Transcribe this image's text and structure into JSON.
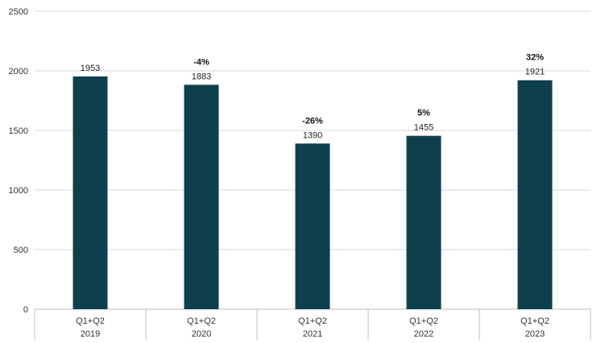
{
  "chart_data": {
    "type": "bar",
    "categories": [
      {
        "period": "Q1+Q2",
        "year": "2019"
      },
      {
        "period": "Q1+Q2",
        "year": "2020"
      },
      {
        "period": "Q1+Q2",
        "year": "2021"
      },
      {
        "period": "Q1+Q2",
        "year": "2022"
      },
      {
        "period": "Q1+Q2",
        "year": "2023"
      }
    ],
    "values": [
      1953,
      1883,
      1390,
      1455,
      1921
    ],
    "value_labels": [
      "1953",
      "1883",
      "1390",
      "1455",
      "1921"
    ],
    "change_labels": [
      "",
      "-4%",
      "-26%",
      "5%",
      "32%"
    ],
    "ylim": [
      0,
      2500
    ],
    "yticks": [
      0,
      500,
      1000,
      1500,
      2000,
      2500
    ],
    "grid": true,
    "bar_color": "#0e3f4d",
    "grid_color": "#d9d9d9",
    "title": "",
    "xlabel": "",
    "ylabel": ""
  }
}
